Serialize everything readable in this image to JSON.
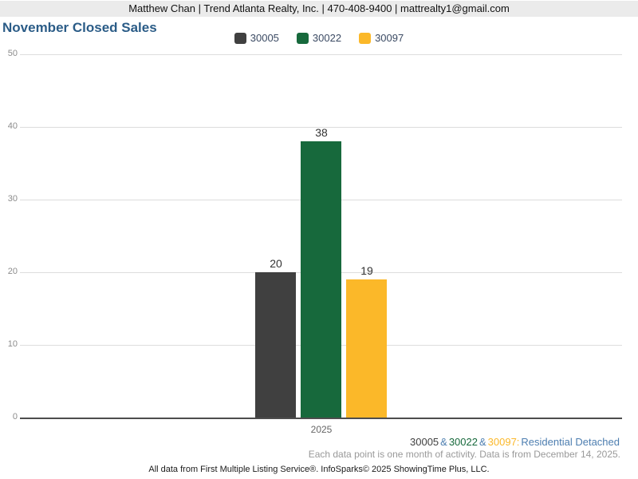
{
  "header": {
    "contact_line": "Matthew Chan | Trend Atlanta Realty, Inc. | 470-408-9400 | mattrealty1@gmail.com"
  },
  "title": "November Closed Sales",
  "chart_data": {
    "type": "bar",
    "title": "November Closed Sales",
    "categories": [
      "2025"
    ],
    "series": [
      {
        "name": "30005",
        "values": [
          20
        ],
        "color": "#404040"
      },
      {
        "name": "30022",
        "values": [
          38
        ],
        "color": "#17693c"
      },
      {
        "name": "30097",
        "values": [
          19
        ],
        "color": "#fbb829"
      }
    ],
    "ylim": [
      0,
      50
    ],
    "ytick_step": 10,
    "grid": true,
    "legend_position": "top",
    "value_labels_shown": true
  },
  "footnote": {
    "zip1": "30005",
    "amp1": "&",
    "zip2": "30022",
    "amp2": "&",
    "zip3": "30097:",
    "suffix": "Residential Detached",
    "activity_note": "Each data point is one month of activity. Data is from December 14, 2025.",
    "attribution": "All data from First Multiple Listing Service®. InfoSparks© 2025 ShowingTime Plus, LLC."
  },
  "colors": {
    "band_bg": "#ebebeb",
    "title": "#2b5c87",
    "blue_text": "#4d7eb0",
    "note_gray": "#999999",
    "grid": "#dddddd",
    "axis": "#4d4d4d",
    "tick_label": "#8c8c8c",
    "value_label": "#333333"
  }
}
